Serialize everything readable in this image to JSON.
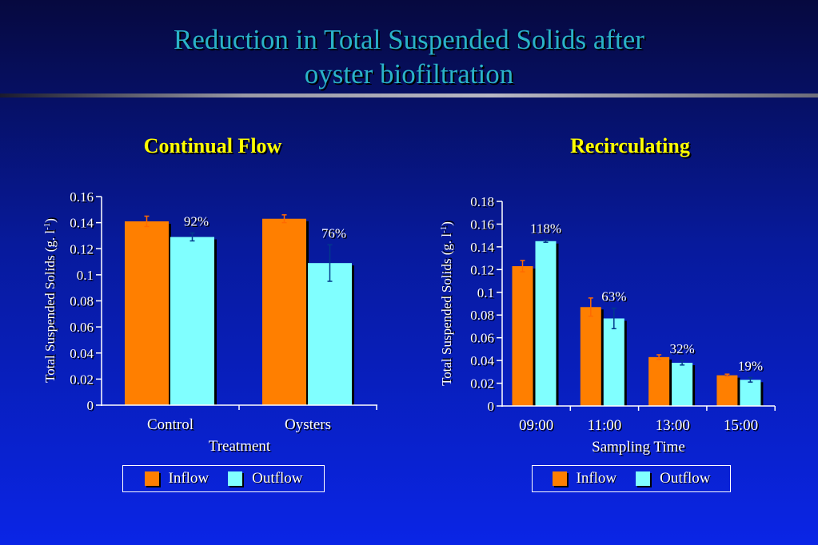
{
  "title": {
    "line1": "Reduction in Total Suspended Solids after",
    "line2": "oyster biofiltration"
  },
  "colors": {
    "inflow": "#ff7f00",
    "outflow": "#80ffff",
    "axis": "#ffffff",
    "title": "#2ab3c8",
    "panel_title": "#ffff00"
  },
  "legend": {
    "inflow": "Inflow",
    "outflow": "Outflow"
  },
  "chart_data": [
    {
      "type": "bar",
      "title": "Continual Flow",
      "xlabel": "Treatment",
      "ylabel": "Total Suspended Solids (g. l-1)",
      "ylim": [
        0,
        0.16
      ],
      "yticks": [
        "0",
        "0.02",
        "0.04",
        "0.06",
        "0.08",
        "0.1",
        "0.12",
        "0.14",
        "0.16"
      ],
      "categories": [
        "Control",
        "Oysters"
      ],
      "series": [
        {
          "name": "Inflow",
          "values": [
            0.141,
            0.143
          ],
          "errors": [
            0.004,
            0.003
          ]
        },
        {
          "name": "Outflow",
          "values": [
            0.129,
            0.109
          ],
          "errors": [
            0.003,
            0.014
          ]
        }
      ],
      "annotations": [
        "92%",
        "76%"
      ]
    },
    {
      "type": "bar",
      "title": "Recirculating",
      "xlabel": "Sampling Time",
      "ylabel": "Total Suspended Solids (g. l-1)",
      "ylim": [
        0,
        0.18
      ],
      "yticks": [
        "0",
        "0.02",
        "0.04",
        "0.06",
        "0.08",
        "0.1",
        "0.12",
        "0.14",
        "0.16",
        "0.18"
      ],
      "categories": [
        "09:00",
        "11:00",
        "13:00",
        "15:00"
      ],
      "series": [
        {
          "name": "Inflow",
          "values": [
            0.123,
            0.087,
            0.043,
            0.027
          ],
          "errors": [
            0.005,
            0.008,
            0.002,
            0.001
          ]
        },
        {
          "name": "Outflow",
          "values": [
            0.145,
            0.077,
            0.038,
            0.023
          ],
          "errors": [
            0.001,
            0.009,
            0.002,
            0.002
          ]
        }
      ],
      "annotations": [
        "118%",
        "63%",
        "32%",
        "19%"
      ]
    }
  ]
}
